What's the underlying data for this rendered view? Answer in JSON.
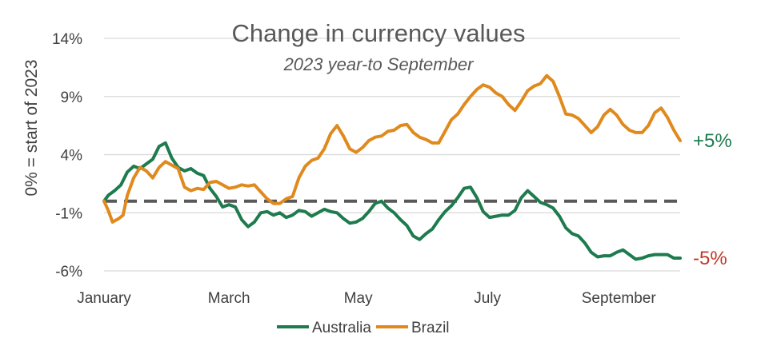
{
  "chart_data": {
    "type": "line",
    "title": "Change in currency values",
    "subtitle": "2023 year-to September",
    "ylabel": "0% = start of 2023",
    "xlabel": "",
    "ylim": [
      -6,
      14
    ],
    "yticks": [
      14,
      9,
      4,
      -1,
      -6
    ],
    "ytick_labels": [
      "14%",
      "9%",
      "4%",
      "-1%",
      "-6%"
    ],
    "xlim": [
      "2023-01-01",
      "2023-09-30"
    ],
    "xticks": [
      "2023-01-01",
      "2023-03-01",
      "2023-05-01",
      "2023-07-01",
      "2023-09-01"
    ],
    "xtick_labels": [
      "January",
      "March",
      "May",
      "July",
      "September"
    ],
    "grid": "horizontal",
    "legend_position": "bottom",
    "reference_line": 0,
    "end_labels": [
      {
        "series": "Australia",
        "text": "-5%",
        "color": "#C0392B"
      },
      {
        "series": "Brazil",
        "text": "+5%",
        "color": "#1E7B4E"
      }
    ],
    "series": [
      {
        "name": "Australia",
        "color": "#1E7B4E",
        "points": [
          [
            "2023-01-01",
            0.0
          ],
          [
            "2023-01-03",
            0.5
          ],
          [
            "2023-01-06",
            0.9
          ],
          [
            "2023-01-09",
            1.4
          ],
          [
            "2023-01-12",
            2.5
          ],
          [
            "2023-01-15",
            3.0
          ],
          [
            "2023-01-18",
            2.8
          ],
          [
            "2023-01-21",
            3.2
          ],
          [
            "2023-01-24",
            3.6
          ],
          [
            "2023-01-27",
            4.7
          ],
          [
            "2023-01-30",
            5.0
          ],
          [
            "2023-02-02",
            3.7
          ],
          [
            "2023-02-05",
            2.9
          ],
          [
            "2023-02-08",
            2.6
          ],
          [
            "2023-02-11",
            2.8
          ],
          [
            "2023-02-14",
            2.4
          ],
          [
            "2023-02-17",
            2.2
          ],
          [
            "2023-02-20",
            1.1
          ],
          [
            "2023-02-23",
            0.4
          ],
          [
            "2023-02-26",
            -0.5
          ],
          [
            "2023-03-01",
            -0.3
          ],
          [
            "2023-03-04",
            -0.5
          ],
          [
            "2023-03-07",
            -1.6
          ],
          [
            "2023-03-10",
            -2.2
          ],
          [
            "2023-03-13",
            -1.8
          ],
          [
            "2023-03-16",
            -1.0
          ],
          [
            "2023-03-19",
            -0.9
          ],
          [
            "2023-03-22",
            -1.2
          ],
          [
            "2023-03-25",
            -1.0
          ],
          [
            "2023-03-28",
            -1.4
          ],
          [
            "2023-03-31",
            -1.2
          ],
          [
            "2023-04-03",
            -0.8
          ],
          [
            "2023-04-06",
            -0.9
          ],
          [
            "2023-04-09",
            -1.3
          ],
          [
            "2023-04-12",
            -1.0
          ],
          [
            "2023-04-15",
            -0.7
          ],
          [
            "2023-04-18",
            -0.9
          ],
          [
            "2023-04-21",
            -1.0
          ],
          [
            "2023-04-24",
            -1.5
          ],
          [
            "2023-04-27",
            -1.9
          ],
          [
            "2023-04-30",
            -1.8
          ],
          [
            "2023-05-03",
            -1.5
          ],
          [
            "2023-05-06",
            -0.9
          ],
          [
            "2023-05-09",
            -0.2
          ],
          [
            "2023-05-12",
            0.0
          ],
          [
            "2023-05-15",
            -0.6
          ],
          [
            "2023-05-18",
            -1.0
          ],
          [
            "2023-05-21",
            -1.6
          ],
          [
            "2023-05-24",
            -2.1
          ],
          [
            "2023-05-27",
            -3.0
          ],
          [
            "2023-05-30",
            -3.3
          ],
          [
            "2023-06-02",
            -2.8
          ],
          [
            "2023-06-05",
            -2.4
          ],
          [
            "2023-06-08",
            -1.6
          ],
          [
            "2023-06-11",
            -0.9
          ],
          [
            "2023-06-14",
            -0.4
          ],
          [
            "2023-06-17",
            0.3
          ],
          [
            "2023-06-20",
            1.1
          ],
          [
            "2023-06-23",
            1.2
          ],
          [
            "2023-06-26",
            0.3
          ],
          [
            "2023-06-29",
            -0.9
          ],
          [
            "2023-07-02",
            -1.4
          ],
          [
            "2023-07-05",
            -1.3
          ],
          [
            "2023-07-08",
            -1.2
          ],
          [
            "2023-07-11",
            -1.2
          ],
          [
            "2023-07-14",
            -0.8
          ],
          [
            "2023-07-17",
            0.3
          ],
          [
            "2023-07-20",
            0.9
          ],
          [
            "2023-07-23",
            0.4
          ],
          [
            "2023-07-26",
            -0.1
          ],
          [
            "2023-07-29",
            -0.3
          ],
          [
            "2023-08-01",
            -0.6
          ],
          [
            "2023-08-04",
            -1.3
          ],
          [
            "2023-08-07",
            -2.3
          ],
          [
            "2023-08-10",
            -2.8
          ],
          [
            "2023-08-13",
            -3.0
          ],
          [
            "2023-08-16",
            -3.6
          ],
          [
            "2023-08-19",
            -4.4
          ],
          [
            "2023-08-22",
            -4.8
          ],
          [
            "2023-08-25",
            -4.7
          ],
          [
            "2023-08-28",
            -4.7
          ],
          [
            "2023-08-31",
            -4.4
          ],
          [
            "2023-09-03",
            -4.2
          ],
          [
            "2023-09-06",
            -4.6
          ],
          [
            "2023-09-09",
            -5.0
          ],
          [
            "2023-09-12",
            -4.9
          ],
          [
            "2023-09-15",
            -4.7
          ],
          [
            "2023-09-18",
            -4.6
          ],
          [
            "2023-09-21",
            -4.6
          ],
          [
            "2023-09-24",
            -4.6
          ],
          [
            "2023-09-27",
            -4.9
          ],
          [
            "2023-09-30",
            -4.9
          ]
        ]
      },
      {
        "name": "Brazil",
        "color": "#E08A1E",
        "points": [
          [
            "2023-01-01",
            0.0
          ],
          [
            "2023-01-03",
            -0.8
          ],
          [
            "2023-01-05",
            -1.8
          ],
          [
            "2023-01-08",
            -1.5
          ],
          [
            "2023-01-10",
            -1.2
          ],
          [
            "2023-01-12",
            0.5
          ],
          [
            "2023-01-15",
            2.0
          ],
          [
            "2023-01-18",
            2.9
          ],
          [
            "2023-01-21",
            2.6
          ],
          [
            "2023-01-24",
            2.0
          ],
          [
            "2023-01-27",
            2.9
          ],
          [
            "2023-01-30",
            3.4
          ],
          [
            "2023-02-02",
            3.1
          ],
          [
            "2023-02-05",
            2.8
          ],
          [
            "2023-02-08",
            1.2
          ],
          [
            "2023-02-11",
            0.9
          ],
          [
            "2023-02-14",
            1.1
          ],
          [
            "2023-02-17",
            1.0
          ],
          [
            "2023-02-20",
            1.6
          ],
          [
            "2023-02-23",
            1.7
          ],
          [
            "2023-02-26",
            1.4
          ],
          [
            "2023-03-01",
            1.1
          ],
          [
            "2023-03-04",
            1.2
          ],
          [
            "2023-03-07",
            1.4
          ],
          [
            "2023-03-10",
            1.3
          ],
          [
            "2023-03-13",
            1.4
          ],
          [
            "2023-03-16",
            0.8
          ],
          [
            "2023-03-19",
            0.2
          ],
          [
            "2023-03-22",
            -0.2
          ],
          [
            "2023-03-25",
            -0.2
          ],
          [
            "2023-03-28",
            0.2
          ],
          [
            "2023-03-31",
            0.4
          ],
          [
            "2023-04-03",
            2.0
          ],
          [
            "2023-04-06",
            3.0
          ],
          [
            "2023-04-09",
            3.5
          ],
          [
            "2023-04-12",
            3.7
          ],
          [
            "2023-04-15",
            4.5
          ],
          [
            "2023-04-18",
            5.8
          ],
          [
            "2023-04-21",
            6.5
          ],
          [
            "2023-04-24",
            5.6
          ],
          [
            "2023-04-27",
            4.5
          ],
          [
            "2023-04-30",
            4.2
          ],
          [
            "2023-05-03",
            4.6
          ],
          [
            "2023-05-06",
            5.2
          ],
          [
            "2023-05-09",
            5.5
          ],
          [
            "2023-05-12",
            5.6
          ],
          [
            "2023-05-15",
            6.0
          ],
          [
            "2023-05-18",
            6.1
          ],
          [
            "2023-05-21",
            6.5
          ],
          [
            "2023-05-24",
            6.6
          ],
          [
            "2023-05-27",
            5.9
          ],
          [
            "2023-05-30",
            5.5
          ],
          [
            "2023-06-02",
            5.3
          ],
          [
            "2023-06-05",
            5.0
          ],
          [
            "2023-06-08",
            5.0
          ],
          [
            "2023-06-11",
            6.0
          ],
          [
            "2023-06-14",
            7.0
          ],
          [
            "2023-06-17",
            7.5
          ],
          [
            "2023-06-20",
            8.3
          ],
          [
            "2023-06-23",
            9.0
          ],
          [
            "2023-06-26",
            9.6
          ],
          [
            "2023-06-29",
            10.0
          ],
          [
            "2023-07-02",
            9.8
          ],
          [
            "2023-07-05",
            9.3
          ],
          [
            "2023-07-08",
            9.0
          ],
          [
            "2023-07-11",
            8.3
          ],
          [
            "2023-07-14",
            7.8
          ],
          [
            "2023-07-17",
            8.6
          ],
          [
            "2023-07-20",
            9.5
          ],
          [
            "2023-07-23",
            9.9
          ],
          [
            "2023-07-26",
            10.1
          ],
          [
            "2023-07-29",
            10.8
          ],
          [
            "2023-08-01",
            10.3
          ],
          [
            "2023-08-04",
            9.0
          ],
          [
            "2023-08-07",
            7.5
          ],
          [
            "2023-08-10",
            7.4
          ],
          [
            "2023-08-13",
            7.1
          ],
          [
            "2023-08-16",
            6.5
          ],
          [
            "2023-08-19",
            5.9
          ],
          [
            "2023-08-22",
            6.4
          ],
          [
            "2023-08-25",
            7.4
          ],
          [
            "2023-08-28",
            7.9
          ],
          [
            "2023-08-31",
            7.4
          ],
          [
            "2023-09-03",
            6.6
          ],
          [
            "2023-09-06",
            6.1
          ],
          [
            "2023-09-09",
            5.9
          ],
          [
            "2023-09-12",
            5.9
          ],
          [
            "2023-09-15",
            6.5
          ],
          [
            "2023-09-18",
            7.6
          ],
          [
            "2023-09-21",
            8.0
          ],
          [
            "2023-09-24",
            7.2
          ],
          [
            "2023-09-27",
            6.1
          ],
          [
            "2023-09-30",
            5.2
          ]
        ]
      }
    ]
  }
}
